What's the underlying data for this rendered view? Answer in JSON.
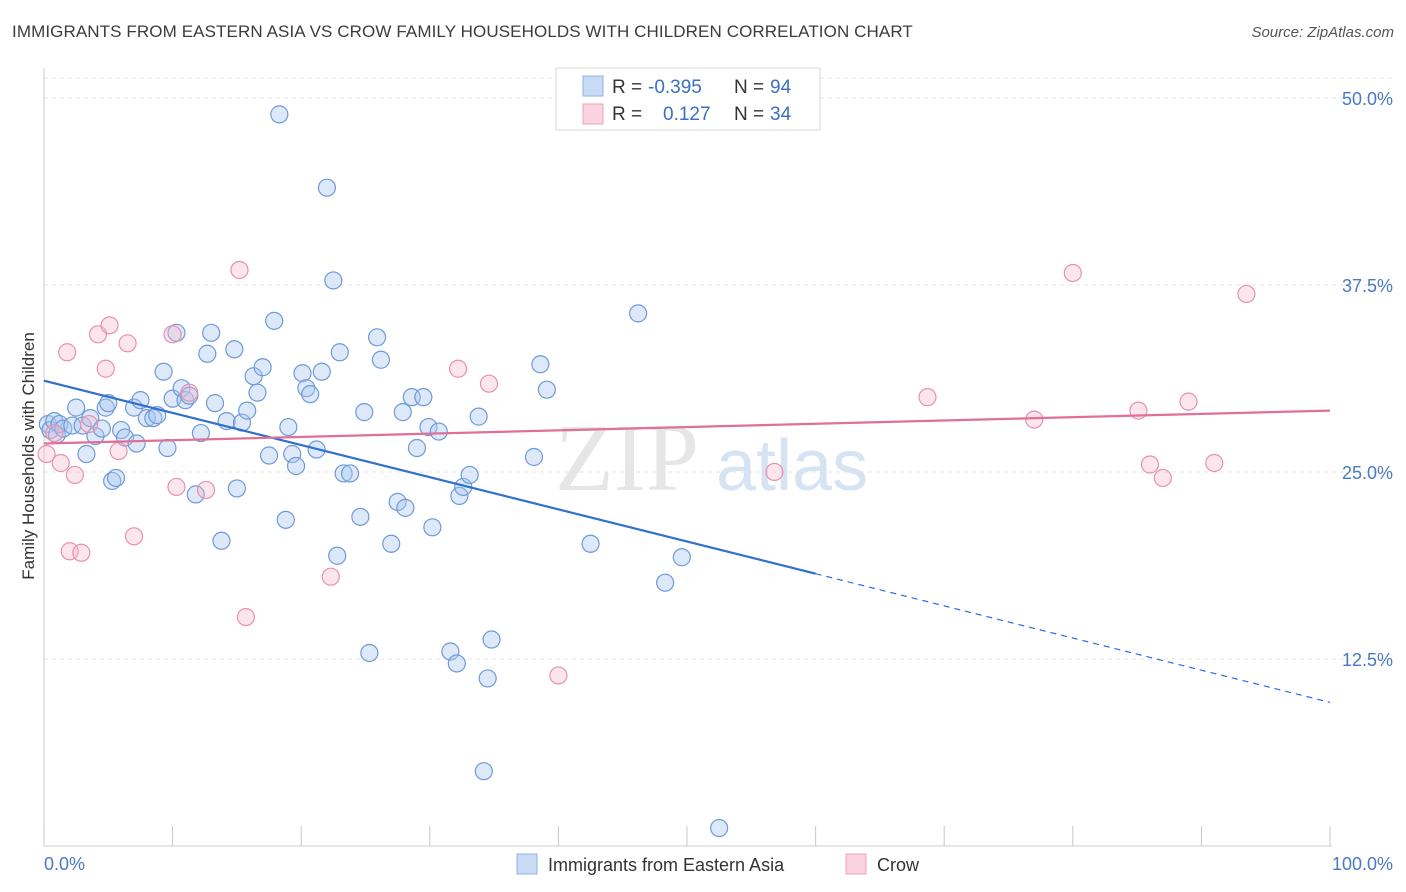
{
  "title": "IMMIGRANTS FROM EASTERN ASIA VS CROW FAMILY HOUSEHOLDS WITH CHILDREN CORRELATION CHART",
  "source": "Source: ZipAtlas.com",
  "watermark": {
    "zip": "ZIP",
    "atlas": "atlas"
  },
  "colors": {
    "blue": "#a9c7ef",
    "blue_line": "#2f6fd0",
    "pink": "#f6b8cb",
    "pink_line": "#e07095",
    "tick": "#4a79c4"
  },
  "legend": {
    "rows": [
      {
        "r_label": "R =",
        "r_value": "-0.395",
        "n_label": "N =",
        "n_value": "94"
      },
      {
        "r_label": "R =",
        "r_value": "0.127",
        "n_label": "N =",
        "n_value": "34"
      }
    ]
  },
  "bottom_legend": {
    "series1": "Immigrants from Eastern Asia",
    "series2": "Crow"
  },
  "chart_data": {
    "type": "scatter",
    "title": "IMMIGRANTS FROM EASTERN ASIA VS CROW FAMILY HOUSEHOLDS WITH CHILDREN CORRELATION CHART",
    "xlabel": "",
    "ylabel": "Family Households with Children",
    "xlim": [
      0,
      100
    ],
    "ylim": [
      0,
      52
    ],
    "x_ticks": [
      "0.0%",
      "100.0%"
    ],
    "y_ticks": [
      {
        "value": 12.5,
        "label": "12.5%"
      },
      {
        "value": 25.0,
        "label": "25.0%"
      },
      {
        "value": 37.5,
        "label": "37.5%"
      },
      {
        "value": 50.0,
        "label": "50.0%"
      }
    ],
    "grid": "horizontal dashed",
    "legend_position": "top-center",
    "series": [
      {
        "name": "Immigrants from Eastern Asia",
        "r": -0.395,
        "n": 94,
        "trend": {
          "x0": 0,
          "y0": 31.1,
          "x1": 60,
          "y1": 18.2,
          "x_dash_end": 100,
          "y_dash_end": 9.6
        },
        "points": [
          [
            0.3,
            28.2
          ],
          [
            0.5,
            27.8
          ],
          [
            0.8,
            28.4
          ],
          [
            1.0,
            27.5
          ],
          [
            1.2,
            28.2
          ],
          [
            1.5,
            27.9
          ],
          [
            2.2,
            28.1
          ],
          [
            2.5,
            29.3
          ],
          [
            3.0,
            28.1
          ],
          [
            3.3,
            26.2
          ],
          [
            3.6,
            28.6
          ],
          [
            4.0,
            27.4
          ],
          [
            4.5,
            27.9
          ],
          [
            4.8,
            29.3
          ],
          [
            5.0,
            29.6
          ],
          [
            5.3,
            24.4
          ],
          [
            5.6,
            24.6
          ],
          [
            6.0,
            27.8
          ],
          [
            6.3,
            27.3
          ],
          [
            7.0,
            29.3
          ],
          [
            7.2,
            26.9
          ],
          [
            7.5,
            29.8
          ],
          [
            8.0,
            28.6
          ],
          [
            8.5,
            28.6
          ],
          [
            8.8,
            28.8
          ],
          [
            9.3,
            31.7
          ],
          [
            9.6,
            26.6
          ],
          [
            10.0,
            29.9
          ],
          [
            10.3,
            34.3
          ],
          [
            10.7,
            30.6
          ],
          [
            11.0,
            29.8
          ],
          [
            11.3,
            30.1
          ],
          [
            11.8,
            23.5
          ],
          [
            12.2,
            27.6
          ],
          [
            12.7,
            32.9
          ],
          [
            13.0,
            34.3
          ],
          [
            13.3,
            29.6
          ],
          [
            13.8,
            20.4
          ],
          [
            14.2,
            28.4
          ],
          [
            14.8,
            33.2
          ],
          [
            15.0,
            23.9
          ],
          [
            15.4,
            28.3
          ],
          [
            15.8,
            29.1
          ],
          [
            16.3,
            31.4
          ],
          [
            16.6,
            30.3
          ],
          [
            17.0,
            32.0
          ],
          [
            17.5,
            26.1
          ],
          [
            17.9,
            35.1
          ],
          [
            18.3,
            48.9
          ],
          [
            18.8,
            21.8
          ],
          [
            19.0,
            28.0
          ],
          [
            19.3,
            26.2
          ],
          [
            19.6,
            25.4
          ],
          [
            20.1,
            31.6
          ],
          [
            20.4,
            30.6
          ],
          [
            20.7,
            30.2
          ],
          [
            21.2,
            26.5
          ],
          [
            21.6,
            31.7
          ],
          [
            22.0,
            44.0
          ],
          [
            22.5,
            37.8
          ],
          [
            22.8,
            19.4
          ],
          [
            23.0,
            33.0
          ],
          [
            23.3,
            24.9
          ],
          [
            23.8,
            24.9
          ],
          [
            24.6,
            22.0
          ],
          [
            24.9,
            29.0
          ],
          [
            25.3,
            12.9
          ],
          [
            25.9,
            34.0
          ],
          [
            26.2,
            32.5
          ],
          [
            27.0,
            20.2
          ],
          [
            27.5,
            23.0
          ],
          [
            27.9,
            29.0
          ],
          [
            28.1,
            22.6
          ],
          [
            28.6,
            30.0
          ],
          [
            29.0,
            26.6
          ],
          [
            29.5,
            30.0
          ],
          [
            29.9,
            28.0
          ],
          [
            30.2,
            21.3
          ],
          [
            30.7,
            27.7
          ],
          [
            31.6,
            13.0
          ],
          [
            32.1,
            12.2
          ],
          [
            32.3,
            23.4
          ],
          [
            32.6,
            24.0
          ],
          [
            33.1,
            24.8
          ],
          [
            33.8,
            28.7
          ],
          [
            34.2,
            5.0
          ],
          [
            34.5,
            11.2
          ],
          [
            34.8,
            13.8
          ],
          [
            38.1,
            26.0
          ],
          [
            38.6,
            32.2
          ],
          [
            39.1,
            30.5
          ],
          [
            42.5,
            20.2
          ],
          [
            46.2,
            35.6
          ],
          [
            48.3,
            17.6
          ],
          [
            49.6,
            19.3
          ],
          [
            52.5,
            1.2
          ]
        ]
      },
      {
        "name": "Crow",
        "r": 0.127,
        "n": 34,
        "trend": {
          "x0": 0,
          "y0": 26.9,
          "x1": 100,
          "y1": 29.1
        },
        "points": [
          [
            0.2,
            26.2
          ],
          [
            0.8,
            27.6
          ],
          [
            1.3,
            25.6
          ],
          [
            1.8,
            33.0
          ],
          [
            2.0,
            19.7
          ],
          [
            2.4,
            24.8
          ],
          [
            2.9,
            19.6
          ],
          [
            3.5,
            28.2
          ],
          [
            4.2,
            34.2
          ],
          [
            4.8,
            31.9
          ],
          [
            5.1,
            34.8
          ],
          [
            5.8,
            26.4
          ],
          [
            6.5,
            33.6
          ],
          [
            7.0,
            20.7
          ],
          [
            10.0,
            34.2
          ],
          [
            10.3,
            24.0
          ],
          [
            11.3,
            30.3
          ],
          [
            12.6,
            23.8
          ],
          [
            15.2,
            38.5
          ],
          [
            15.7,
            15.3
          ],
          [
            22.3,
            18.0
          ],
          [
            32.2,
            31.9
          ],
          [
            34.6,
            30.9
          ],
          [
            40.0,
            11.4
          ],
          [
            56.8,
            25.0
          ],
          [
            68.7,
            30.0
          ],
          [
            77.0,
            28.5
          ],
          [
            80.0,
            38.3
          ],
          [
            85.1,
            29.1
          ],
          [
            86.0,
            25.5
          ],
          [
            87.0,
            24.6
          ],
          [
            89.0,
            29.7
          ],
          [
            91.0,
            25.6
          ],
          [
            93.5,
            36.9
          ]
        ]
      }
    ]
  }
}
